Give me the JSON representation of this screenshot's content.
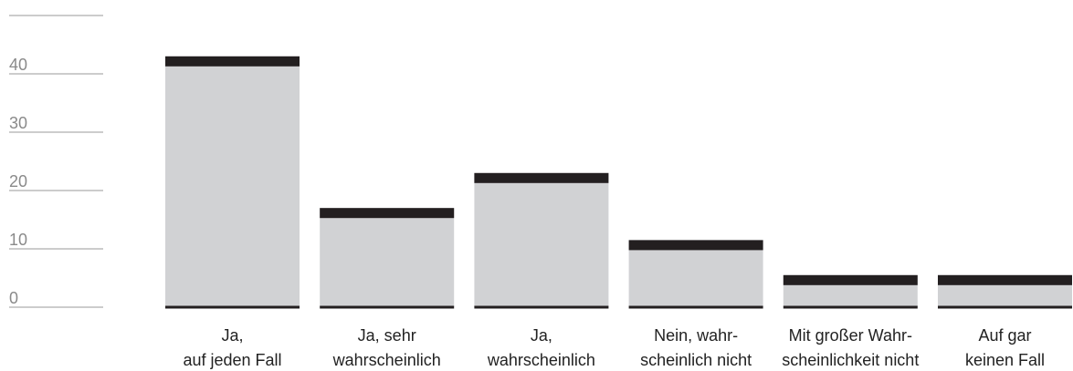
{
  "chart_data": {
    "type": "bar",
    "categories": [
      [
        "Ja,",
        "auf jeden Fall"
      ],
      [
        "Ja, sehr",
        "wahrscheinlich"
      ],
      [
        "Ja,",
        "wahrscheinlich"
      ],
      [
        "Nein, wahr-",
        "scheinlich nicht"
      ],
      [
        "Mit großer Wahr-",
        "scheinlichkeit nicht"
      ],
      [
        "Auf gar",
        "keinen Fall"
      ]
    ],
    "values": [
      43,
      17,
      23,
      11.5,
      5.5,
      5.5
    ],
    "color": "#d1d2d4",
    "cap_color": "#231f20",
    "ylim": [
      0,
      50
    ],
    "yticks": [
      0,
      10,
      20,
      30,
      40
    ],
    "grid": true
  }
}
